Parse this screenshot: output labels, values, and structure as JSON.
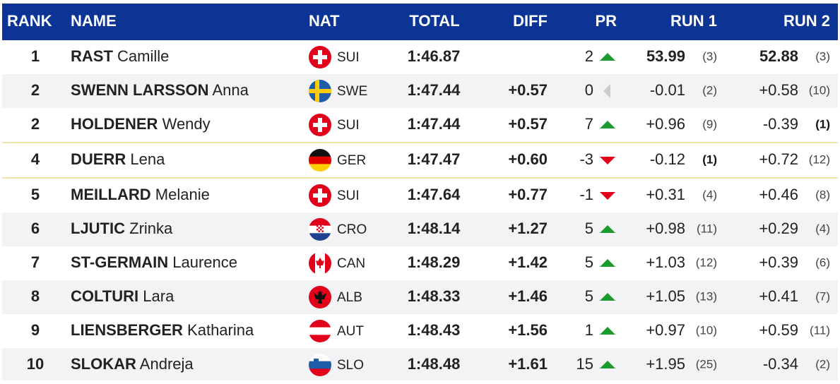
{
  "table": {
    "header": [
      "RANK",
      "NAME",
      "NAT",
      "TOTAL",
      "DIFF",
      "PR",
      "RUN 1",
      "RUN 2"
    ],
    "rows": [
      {
        "rank": "1",
        "surname": "RAST",
        "first": "Camille",
        "nat": "SUI",
        "total": "1:46.87",
        "pr": "2",
        "trend": "up",
        "run1": "53.99",
        "run1_rank": "(3)",
        "run2": "52.88",
        "run2_rank": "(3)"
      },
      {
        "rank": "2",
        "surname": "SWENN LARSSON",
        "first": "Anna",
        "nat": "SWE",
        "total": "1:47.44",
        "diff": "+0.57",
        "pr": "0",
        "trend": "flat",
        "run1": "-0.01",
        "run1_rank": "(2)",
        "run2": "+0.58",
        "run2_rank": "(10)"
      },
      {
        "rank": "2",
        "surname": "HOLDENER",
        "first": "Wendy",
        "nat": "SUI",
        "total": "1:47.44",
        "diff": "+0.57",
        "pr": "7",
        "trend": "up",
        "run1": "+0.96",
        "run1_rank": "(9)",
        "run2": "-0.39",
        "run2_rank": "(1)",
        "run2_best": true
      },
      {
        "rank": "4",
        "surname": "DUERR",
        "first": "Lena",
        "nat": "GER",
        "total": "1:47.47",
        "diff": "+0.60",
        "pr": "-3",
        "trend": "down",
        "run1": "-0.12",
        "run1_rank": "(1)",
        "run1_best": true,
        "run2": "+0.72",
        "run2_rank": "(12)",
        "highlight": true
      },
      {
        "rank": "5",
        "surname": "MEILLARD",
        "first": "Melanie",
        "nat": "SUI",
        "total": "1:47.64",
        "diff": "+0.77",
        "pr": "-1",
        "trend": "down",
        "run1": "+0.31",
        "run1_rank": "(4)",
        "run2": "+0.46",
        "run2_rank": "(8)"
      },
      {
        "rank": "6",
        "surname": "LJUTIC",
        "first": "Zrinka",
        "nat": "CRO",
        "total": "1:48.14",
        "diff": "+1.27",
        "pr": "5",
        "trend": "up",
        "run1": "+0.98",
        "run1_rank": "(11)",
        "run2": "+0.29",
        "run2_rank": "(4)"
      },
      {
        "rank": "7",
        "surname": "ST-GERMAIN",
        "first": "Laurence",
        "nat": "CAN",
        "total": "1:48.29",
        "diff": "+1.42",
        "pr": "5",
        "trend": "up",
        "run1": "+1.03",
        "run1_rank": "(12)",
        "run2": "+0.39",
        "run2_rank": "(6)"
      },
      {
        "rank": "8",
        "surname": "COLTURI",
        "first": "Lara",
        "nat": "ALB",
        "total": "1:48.33",
        "diff": "+1.46",
        "pr": "5",
        "trend": "up",
        "run1": "+1.05",
        "run1_rank": "(13)",
        "run2": "+0.41",
        "run2_rank": "(7)"
      },
      {
        "rank": "9",
        "surname": "LIENSBERGER",
        "first": "Katharina",
        "nat": "AUT",
        "total": "1:48.43",
        "diff": "+1.56",
        "pr": "1",
        "trend": "up",
        "run1": "+0.97",
        "run1_rank": "(10)",
        "run2": "+0.59",
        "run2_rank": "(11)"
      },
      {
        "rank": "10",
        "surname": "SLOKAR",
        "first": "Andreja",
        "nat": "SLO",
        "total": "1:48.48",
        "diff": "+1.61",
        "pr": "15",
        "trend": "up",
        "run1": "+1.95",
        "run1_rank": "(25)",
        "run2": "-0.34",
        "run2_rank": "(2)"
      }
    ]
  }
}
